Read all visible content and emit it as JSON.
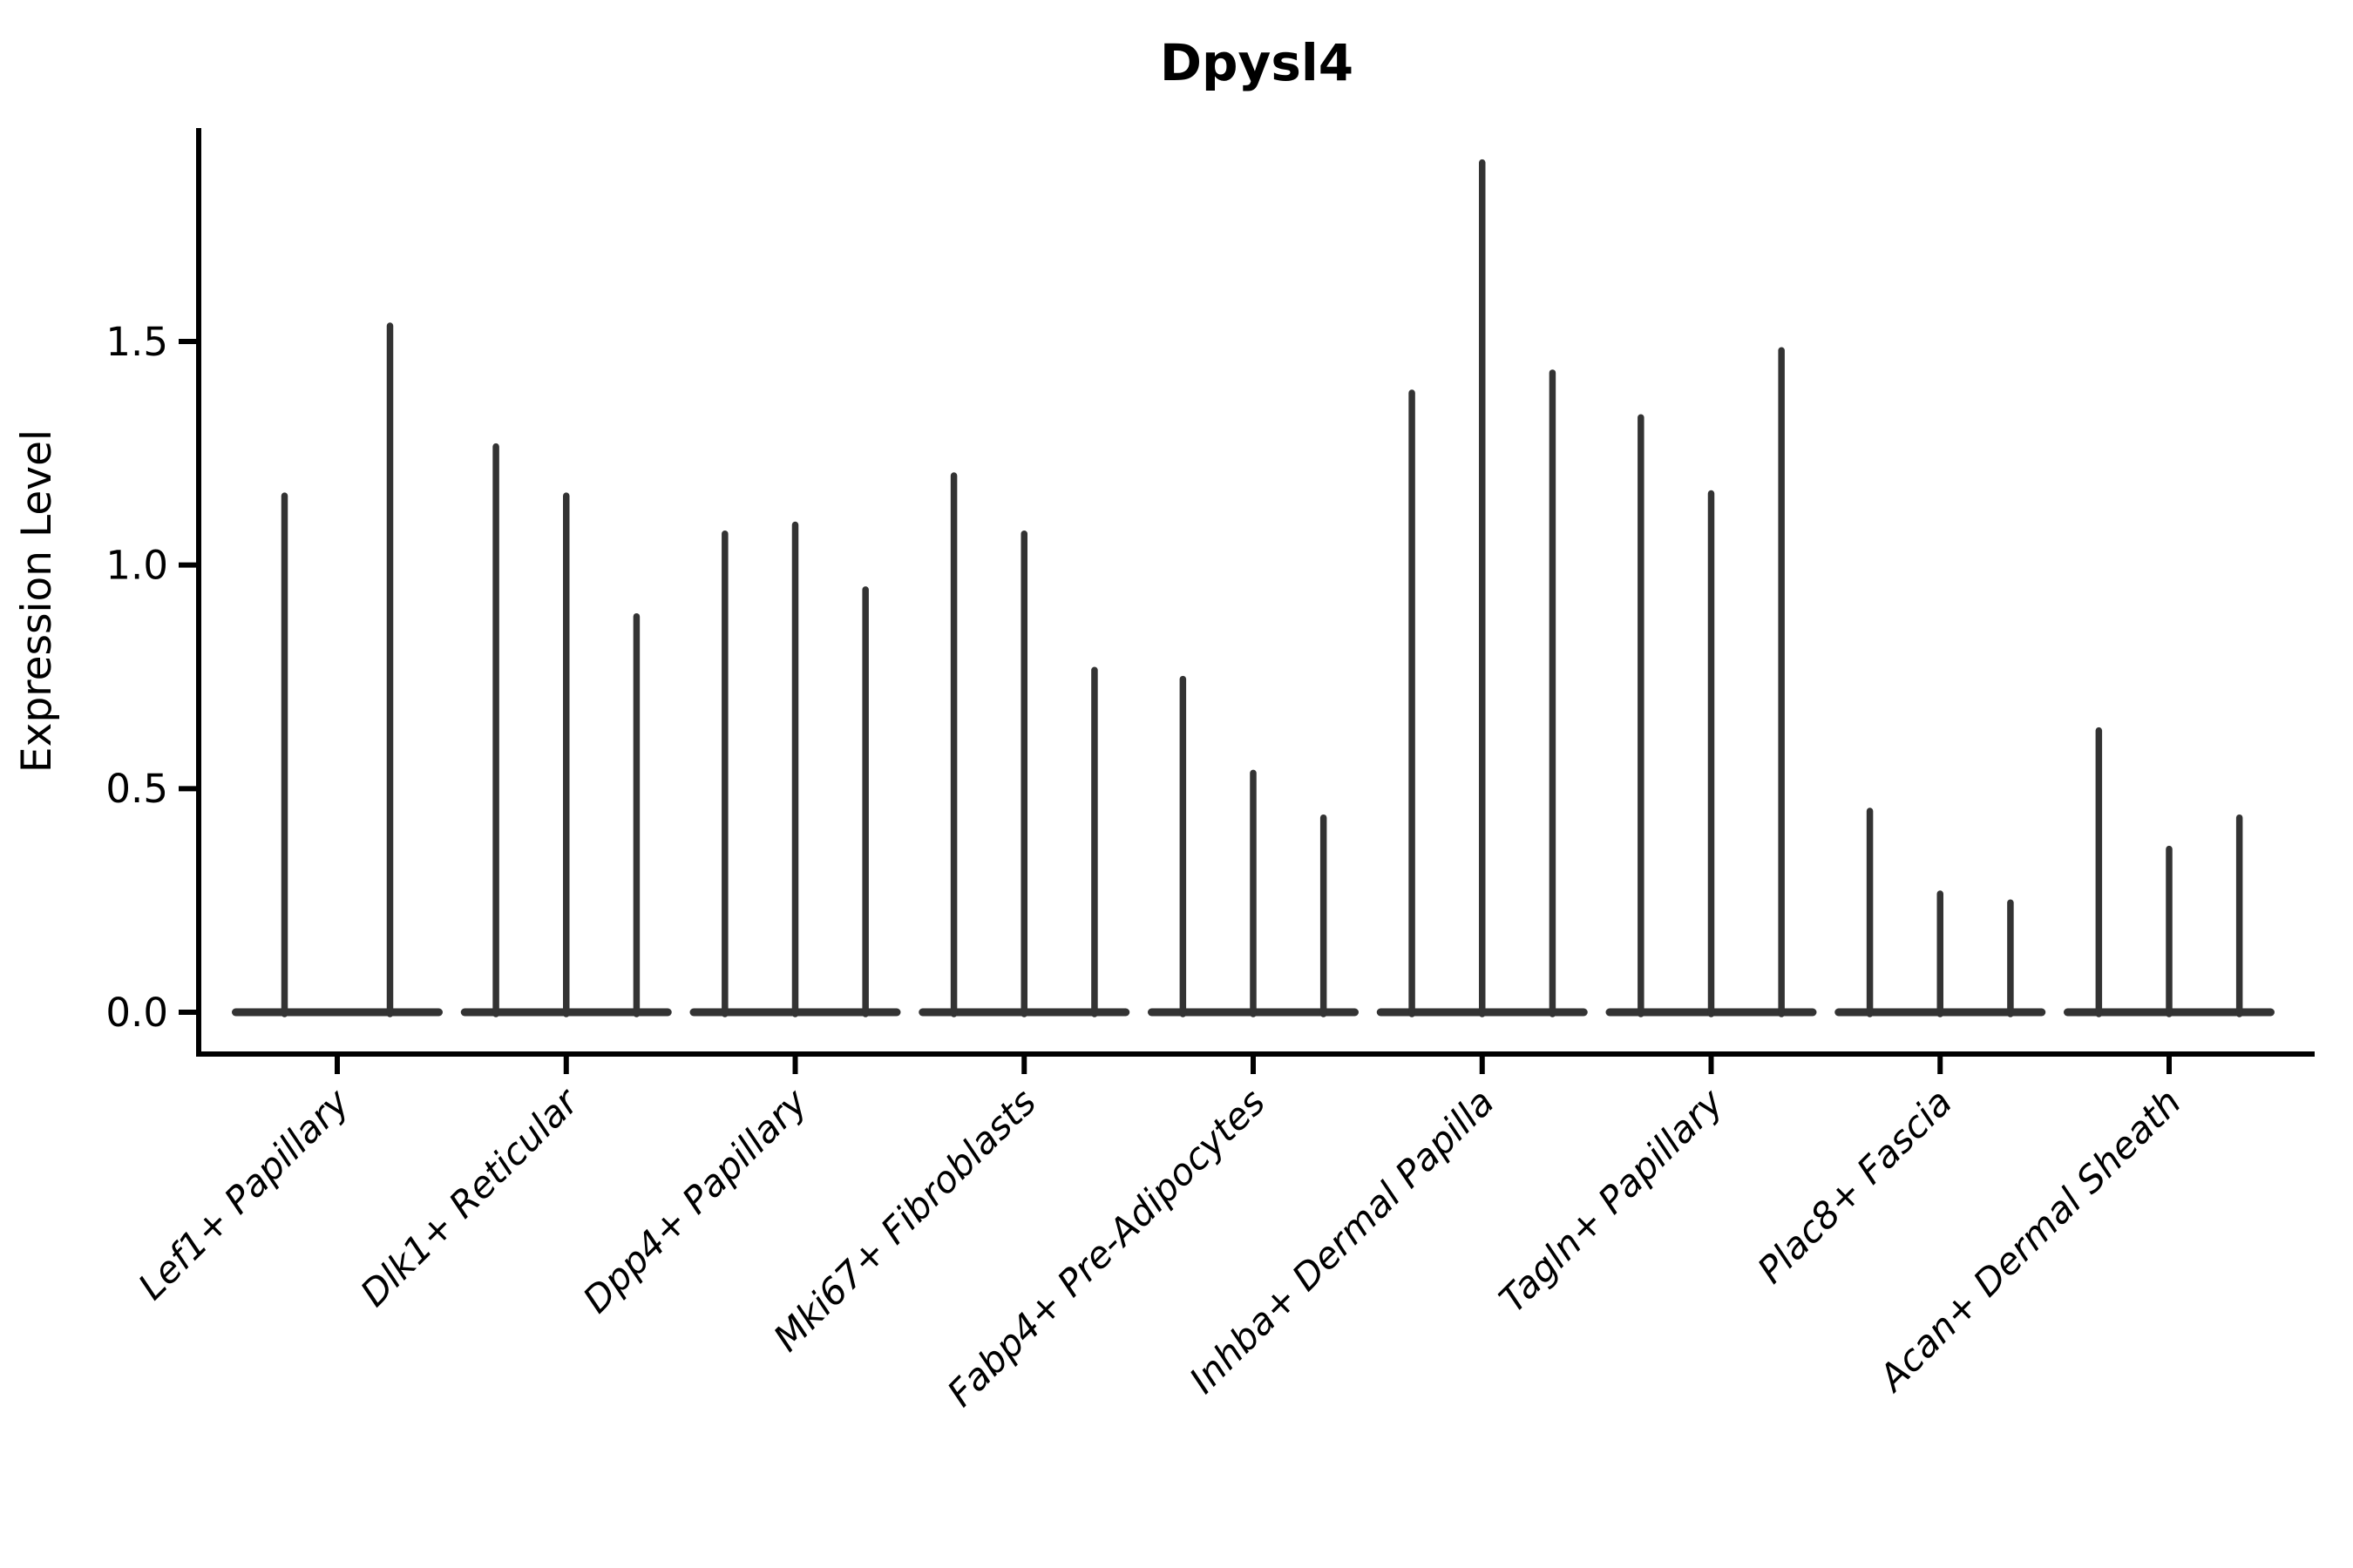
{
  "title": "Dpysl4",
  "ylabel": "Expression Level",
  "chart_data": {
    "type": "violin",
    "title": "Dpysl4",
    "xlabel": "",
    "ylabel": "Expression Level",
    "ylim": [
      -0.09,
      1.98
    ],
    "yticks": [
      0.0,
      0.5,
      1.0,
      1.5
    ],
    "ytick_labels": [
      "0.0",
      "0.5",
      "1.0",
      "1.5"
    ],
    "grid": false,
    "legend": "none",
    "violin_style": "flat base at 0 with thin upper tail spike to max",
    "violin_color": "#333333",
    "axis_color": "#000000",
    "categories": [
      "Lef1+ Papillary",
      "Dlk1+ Reticular",
      "Dpp4+ Papillary",
      "Mki67+ Fibroblasts",
      "Fabp4+ Pre-Adipocytes",
      "Inhba+ Dermal Papilla",
      "Tagln+ Papillary",
      "Plac8+ Fascia",
      "Acan+ Dermal Sheath"
    ],
    "groups": [
      {
        "label": "Lef1+ Papillary",
        "violin_maxima": [
          1.155,
          1.535
        ]
      },
      {
        "label": "Dlk1+ Reticular",
        "violin_maxima": [
          1.265,
          1.155,
          0.885
        ]
      },
      {
        "label": "Dpp4+ Papillary",
        "violin_maxima": [
          1.07,
          1.09,
          0.945
        ]
      },
      {
        "label": "Mki67+ Fibroblasts",
        "violin_maxima": [
          1.2,
          1.07,
          0.765
        ]
      },
      {
        "label": "Fabp4+ Pre-Adipocytes",
        "violin_maxima": [
          0.745,
          0.535,
          0.435
        ]
      },
      {
        "label": "Inhba+ Dermal Papilla",
        "violin_maxima": [
          1.385,
          1.9,
          1.43
        ]
      },
      {
        "label": "Tagln+ Papillary",
        "violin_maxima": [
          1.33,
          1.16,
          1.48
        ]
      },
      {
        "label": "Plac8+ Fascia",
        "violin_maxima": [
          0.45,
          0.265,
          0.245
        ]
      },
      {
        "label": "Acan+ Dermal Sheath",
        "violin_maxima": [
          0.63,
          0.365,
          0.435
        ]
      }
    ],
    "baseline_value": 0.0
  }
}
